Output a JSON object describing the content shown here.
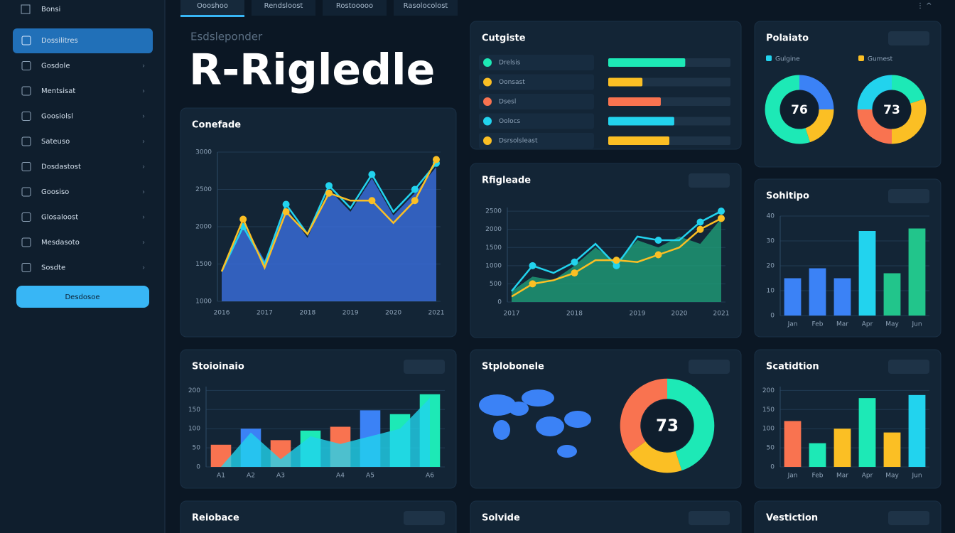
{
  "sidebar": {
    "top": "Bonsi",
    "items": [
      "Dossilitres",
      "Gosdole",
      "Mentsisat",
      "Goosiolsl",
      "Sateuso",
      "Dosdastost",
      "Goosiso",
      "Glosaloost",
      "Mesdasoto",
      "Sosdte"
    ],
    "button": "Desdosoe"
  },
  "tabs": [
    "Oooshoo",
    "Rendsloost",
    "Rostooooo",
    "Rasolocolost"
  ],
  "header": {
    "subtitle": "Esdsleponder",
    "title": "R-Rigledle"
  },
  "chart_data": [
    {
      "type": "area_line",
      "title": "Conefade",
      "categories": [
        "2016",
        null,
        "2017",
        null,
        "2018",
        null,
        "2019",
        null,
        "2020",
        null,
        "2021"
      ],
      "ylim": [
        1000,
        3000
      ],
      "yticks": [
        1000,
        1500,
        2000,
        2500,
        3000
      ],
      "series": [
        {
          "style": "area",
          "color": "#3b6fe0",
          "values": [
            1400,
            2050,
            1550,
            2250,
            1850,
            2500,
            2200,
            2650,
            2150,
            2450,
            2800
          ]
        },
        {
          "style": "line",
          "color": "#22d3ee",
          "values": [
            1400,
            2000,
            1500,
            2300,
            1900,
            2550,
            2250,
            2700,
            2200,
            2500,
            2850
          ]
        },
        {
          "style": "line",
          "color": "#fbbf24",
          "values": [
            1400,
            2100,
            1450,
            2200,
            1900,
            2450,
            2350,
            2350,
            2050,
            2350,
            2900
          ]
        }
      ]
    },
    {
      "type": "progress",
      "title": "Cutgiste",
      "xlim": [
        0,
        100
      ],
      "categories": [
        "Drelsis",
        "Oonsast",
        "Dsesl",
        "Oolocs",
        "Dsrsolsleast"
      ],
      "values": [
        63,
        28,
        43,
        54,
        50
      ],
      "colors": [
        "#1de9b6",
        "#fbbf24",
        "#f97350",
        "#22d3ee",
        "#fbbf24"
      ]
    },
    {
      "type": "donut",
      "title": "Polaiato",
      "legend": [
        {
          "name": "Gulgine",
          "color": "#22d3ee"
        },
        {
          "name": "Gumest",
          "color": "#fbbf24"
        }
      ],
      "donuts": [
        {
          "center": 76,
          "values": [
            25,
            20,
            55
          ],
          "colors": [
            "#3b82f6",
            "#fbbf24",
            "#1de9b6"
          ]
        },
        {
          "center": 73,
          "values": [
            20,
            30,
            25,
            25
          ],
          "colors": [
            "#1de9b6",
            "#fbbf24",
            "#f97350",
            "#22d3ee"
          ]
        }
      ]
    },
    {
      "type": "area_line",
      "title": "Rfigleade",
      "categories": [
        "2017",
        null,
        null,
        "2018",
        null,
        null,
        "2019",
        null,
        "2020",
        null,
        "2021"
      ],
      "ylim": [
        0,
        2600
      ],
      "yticks": [
        0,
        500,
        1000,
        1500,
        2000,
        2500
      ],
      "series": [
        {
          "style": "area",
          "color": "#1f9e78",
          "values": [
            300,
            700,
            600,
            1000,
            1500,
            1100,
            1700,
            1500,
            1800,
            1600,
            2300
          ]
        },
        {
          "style": "line",
          "color": "#22d3ee",
          "values": [
            300,
            1000,
            800,
            1100,
            1600,
            1000,
            1800,
            1700,
            1700,
            2200,
            2500
          ]
        },
        {
          "style": "line",
          "color": "#fbbf24",
          "values": [
            150,
            500,
            600,
            800,
            1150,
            1150,
            1100,
            1300,
            1500,
            2000,
            2300
          ]
        }
      ]
    },
    {
      "type": "bar",
      "title": "Sohitipo",
      "categories": [
        "Jan",
        "Feb",
        "Mar",
        "Apr",
        "May",
        "Jun"
      ],
      "values": [
        15,
        19,
        15,
        34,
        17,
        35
      ],
      "colors": [
        "#3b82f6",
        "#3b82f6",
        "#3b82f6",
        "#22d3ee",
        "#22c58b",
        "#22c58b"
      ],
      "ylim": [
        0,
        40
      ],
      "yticks": [
        0,
        10,
        20,
        30,
        40
      ]
    },
    {
      "type": "bar_area",
      "title": "Stoioinaio",
      "categories": [
        "A1",
        "A2",
        "A3",
        null,
        "A4",
        "A5",
        null,
        "A6"
      ],
      "values": [
        58,
        100,
        70,
        95,
        105,
        148,
        138,
        190
      ],
      "colors": [
        "#f97350",
        "#3b82f6",
        "#f97350",
        "#1de9b6",
        "#f97350",
        "#3b82f6",
        "#1de9b6",
        "#1de9b6"
      ],
      "ylim": [
        0,
        210
      ],
      "yticks": [
        0,
        50,
        100,
        150,
        200
      ],
      "series": [
        {
          "style": "area",
          "color": "#22d3ee",
          "values": [
            0,
            90,
            20,
            80,
            60,
            80,
            100,
            180
          ]
        }
      ]
    },
    {
      "type": "map_donut",
      "title": "Stplobonele",
      "donuts": [
        {
          "center": 73,
          "values": [
            45,
            20,
            35
          ],
          "colors": [
            "#1de9b6",
            "#fbbf24",
            "#f97350"
          ]
        }
      ]
    },
    {
      "type": "bar",
      "title": "Scatidtion",
      "categories": [
        "Jan",
        "Feb",
        "Mar",
        "Apr",
        "May",
        "Jun"
      ],
      "values": [
        120,
        62,
        100,
        180,
        90,
        188
      ],
      "colors": [
        "#f97350",
        "#1de9b6",
        "#fbbf24",
        "#1de9b6",
        "#fbbf24",
        "#22d3ee"
      ],
      "ylim": [
        0,
        210
      ],
      "yticks": [
        0,
        50,
        100,
        150,
        200
      ]
    }
  ],
  "bottom_panels": [
    "Reiobace",
    "Solvide",
    "Vestiction"
  ]
}
